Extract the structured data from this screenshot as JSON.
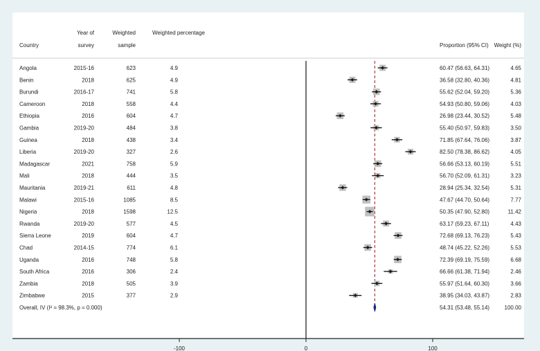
{
  "chart_data": {
    "type": "forest",
    "headers": {
      "country": "Country",
      "year_1": "Year of",
      "year_2": "survey",
      "sample_1": "Weighted",
      "sample_2": "sample",
      "pct": "Weighted percentage",
      "prop": "Proportion (95% CI)",
      "weight": "Weight (%)"
    },
    "rows": [
      {
        "country": "Angola",
        "year": "2015-16",
        "sample": "623",
        "pct": "4.9",
        "est": 60.47,
        "lo": 56.63,
        "hi": 64.31,
        "ci": "60.47 (56.63, 64.31)",
        "weight": "4.65"
      },
      {
        "country": "Benin",
        "year": "2018",
        "sample": "625",
        "pct": "4.9",
        "est": 36.58,
        "lo": 32.8,
        "hi": 40.36,
        "ci": "36.58 (32.80, 40.36)",
        "weight": "4.81"
      },
      {
        "country": "Burundi",
        "year": "2016-17",
        "sample": "741",
        "pct": "5.8",
        "est": 55.62,
        "lo": 52.04,
        "hi": 59.2,
        "ci": "55.62 (52.04, 59.20)",
        "weight": "5.36"
      },
      {
        "country": "Cameroon",
        "year": "2018",
        "sample": "558",
        "pct": "4.4",
        "est": 54.93,
        "lo": 50.8,
        "hi": 59.06,
        "ci": "54.93 (50.80, 59.06)",
        "weight": "4.03"
      },
      {
        "country": "Ethiopia",
        "year": "2016",
        "sample": "604",
        "pct": "4.7",
        "est": 26.98,
        "lo": 23.44,
        "hi": 30.52,
        "ci": "26.98 (23.44, 30.52)",
        "weight": "5.48"
      },
      {
        "country": "Gambia",
        "year": "2019-20",
        "sample": "484",
        "pct": "3.8",
        "est": 55.4,
        "lo": 50.97,
        "hi": 59.83,
        "ci": "55.40 (50.97, 59.83)",
        "weight": "3.50"
      },
      {
        "country": "Guinea",
        "year": "2018",
        "sample": "438",
        "pct": "3.4",
        "est": 71.85,
        "lo": 67.64,
        "hi": 76.06,
        "ci": "71.85 (67.64, 76.06)",
        "weight": "3.87"
      },
      {
        "country": "Liberia",
        "year": "2019-20",
        "sample": "327",
        "pct": "2.6",
        "est": 82.5,
        "lo": 78.38,
        "hi": 86.62,
        "ci": "82.50 (78.38, 86.62)",
        "weight": "4.05"
      },
      {
        "country": "Madagascar",
        "year": "2021",
        "sample": "758",
        "pct": "5.9",
        "est": 56.66,
        "lo": 53.13,
        "hi": 60.19,
        "ci": "56.66 (53.13, 60.19)",
        "weight": "5.51"
      },
      {
        "country": "Mali",
        "year": "2018",
        "sample": "444",
        "pct": "3.5",
        "est": 56.7,
        "lo": 52.09,
        "hi": 61.31,
        "ci": "56.70 (52.09, 61.31)",
        "weight": "3.23"
      },
      {
        "country": "Mauritania",
        "year": "2019-21",
        "sample": "611",
        "pct": "4.8",
        "est": 28.94,
        "lo": 25.34,
        "hi": 32.54,
        "ci": "28.94 (25.34, 32.54)",
        "weight": "5.31"
      },
      {
        "country": "Malawi",
        "year": "2015-16",
        "sample": "1085",
        "pct": "8.5",
        "est": 47.67,
        "lo": 44.7,
        "hi": 50.64,
        "ci": "47.67 (44.70, 50.64)",
        "weight": "7.77"
      },
      {
        "country": "Nigeria",
        "year": "2018",
        "sample": "1598",
        "pct": "12.5",
        "est": 50.35,
        "lo": 47.9,
        "hi": 52.8,
        "ci": "50.35 (47.90, 52.80)",
        "weight": "11.42"
      },
      {
        "country": "Rwanda",
        "year": "2019-20",
        "sample": "577",
        "pct": "4.5",
        "est": 63.17,
        "lo": 59.23,
        "hi": 67.11,
        "ci": "63.17 (59.23, 67.11)",
        "weight": "4.43"
      },
      {
        "country": "Sierra Leone",
        "year": "2019",
        "sample": "604",
        "pct": "4.7",
        "est": 72.68,
        "lo": 69.13,
        "hi": 76.23,
        "ci": "72.68 (69.13, 76.23)",
        "weight": "5.43"
      },
      {
        "country": "Chad",
        "year": "2014-15",
        "sample": "774",
        "pct": "6.1",
        "est": 48.74,
        "lo": 45.22,
        "hi": 52.26,
        "ci": "48.74 (45.22, 52.26)",
        "weight": "5.53"
      },
      {
        "country": "Uganda",
        "year": "2016",
        "sample": "748",
        "pct": "5.8",
        "est": 72.39,
        "lo": 69.19,
        "hi": 75.59,
        "ci": "72.39 (69.19, 75.59)",
        "weight": "6.68"
      },
      {
        "country": "South Africa",
        "year": "2016",
        "sample": "306",
        "pct": "2.4",
        "est": 66.66,
        "lo": 61.38,
        "hi": 71.94,
        "ci": "66.66 (61.38, 71.94)",
        "weight": "2.46"
      },
      {
        "country": "Zambia",
        "year": "2018",
        "sample": "505",
        "pct": "3.9",
        "est": 55.97,
        "lo": 51.64,
        "hi": 60.3,
        "ci": "55.97 (51.64, 60.30)",
        "weight": "3.66"
      },
      {
        "country": "Zimbabwe",
        "year": "2015",
        "sample": "377",
        "pct": "2.9",
        "est": 38.95,
        "lo": 34.03,
        "hi": 43.87,
        "ci": "38.95 (34.03, 43.87)",
        "weight": "2.83"
      }
    ],
    "overall": {
      "label": "Overall, IV (I² = 98.3%, p = 0.000)",
      "est": 54.31,
      "lo": 53.48,
      "hi": 55.14,
      "ci": "54.31 (53.48, 55.14)",
      "weight": "100.00"
    },
    "x_ticks": [
      -100,
      0,
      100
    ],
    "x_tick_labels": [
      "-100",
      "0",
      "100"
    ],
    "null_line": 0,
    "colors": {
      "box": "#c0c0c0",
      "marker": "#1a1a1a",
      "overall": "#1a237e",
      "overall_line": "#b03a3a",
      "background": "#e8f1f4"
    }
  }
}
